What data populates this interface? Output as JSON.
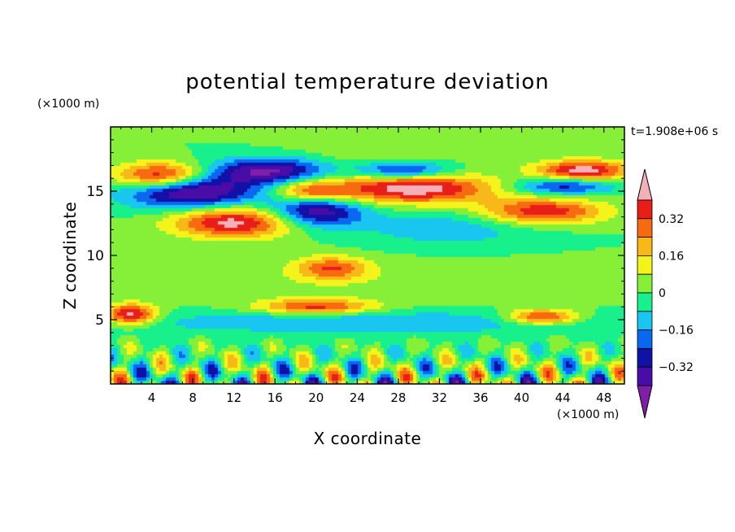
{
  "chart_data": {
    "type": "heatmap",
    "title": "potential temperature deviation",
    "xlabel": "X coordinate",
    "ylabel": "Z coordinate",
    "x_unit": "(×1000 m)",
    "y_unit": "(×1000 m)",
    "time_label": "t=1.908e+06 s",
    "x_range": [
      0,
      50
    ],
    "y_range": [
      0,
      20
    ],
    "x_ticks": [
      4,
      8,
      12,
      16,
      20,
      24,
      28,
      32,
      36,
      40,
      44,
      48
    ],
    "y_ticks": [
      5,
      10,
      15
    ],
    "colorbar": {
      "levels": [
        -0.48,
        -0.4,
        -0.32,
        -0.24,
        -0.16,
        -0.08,
        0,
        0.08,
        0.16,
        0.24,
        0.32,
        0.4
      ],
      "tick_labels": [
        "0.32",
        "0.16",
        "0",
        "−0.16",
        "−0.32"
      ],
      "tick_values": [
        0.32,
        0.16,
        0,
        -0.16,
        -0.32
      ],
      "colors": [
        "#7f1fa8",
        "#4a0ca6",
        "#1111a8",
        "#0a68f0",
        "#18c6f0",
        "#18f08c",
        "#86f038",
        "#f4f41c",
        "#f7b818",
        "#f76a10",
        "#e81f18",
        "#f4b0b8"
      ]
    },
    "features": [
      {
        "cx": 5,
        "cz": 16.2,
        "rx": 4.5,
        "rz": 1.0,
        "v": 0.48
      },
      {
        "cx": 8,
        "cz": 15.0,
        "rx": 6.5,
        "rz": 1.4,
        "v": -0.45
      },
      {
        "cx": 15.5,
        "cz": 16.6,
        "rx": 5.5,
        "rz": 1.0,
        "v": -0.4
      },
      {
        "cx": 12,
        "cz": 12.6,
        "rx": 6.0,
        "rz": 1.2,
        "v": 0.45
      },
      {
        "cx": 19.5,
        "cz": 15.0,
        "rx": 3.5,
        "rz": 0.8,
        "v": 0.3
      },
      {
        "cx": 20,
        "cz": 13.4,
        "rx": 4.5,
        "rz": 1.2,
        "v": -0.4
      },
      {
        "cx": 29.5,
        "cz": 15.2,
        "rx": 8.0,
        "rz": 1.2,
        "v": 0.46
      },
      {
        "cx": 28.5,
        "cz": 16.6,
        "rx": 4.5,
        "rz": 0.7,
        "v": -0.36
      },
      {
        "cx": 46,
        "cz": 16.6,
        "rx": 4.5,
        "rz": 0.8,
        "v": 0.45
      },
      {
        "cx": 42,
        "cz": 13.4,
        "rx": 6.0,
        "rz": 1.0,
        "v": 0.4
      },
      {
        "cx": 44,
        "cz": 15.4,
        "rx": 5.0,
        "rz": 0.7,
        "v": -0.3
      },
      {
        "cx": 21.5,
        "cz": 9.0,
        "rx": 3.5,
        "rz": 0.9,
        "v": 0.3
      },
      {
        "cx": 33,
        "cz": 12.2,
        "rx": 9.0,
        "rz": 1.5,
        "v": -0.14
      },
      {
        "cx": 26,
        "cz": 18.6,
        "rx": 8.0,
        "rz": 1.8,
        "v": 0.07
      },
      {
        "cx": 2,
        "cz": 5.4,
        "rx": 2.5,
        "rz": 0.8,
        "v": 0.45
      },
      {
        "cx": 20,
        "cz": 6.0,
        "rx": 5.5,
        "rz": 0.6,
        "v": 0.35
      },
      {
        "cx": 42,
        "cz": 5.2,
        "rx": 3.5,
        "rz": 0.6,
        "v": 0.4
      },
      {
        "cx": 25,
        "cz": 4.8,
        "rx": 25,
        "rz": 0.9,
        "v": -0.16
      },
      {
        "cx": 25,
        "cz": 8.0,
        "rx": 25,
        "rz": 1.8,
        "v": 0.05
      }
    ]
  }
}
